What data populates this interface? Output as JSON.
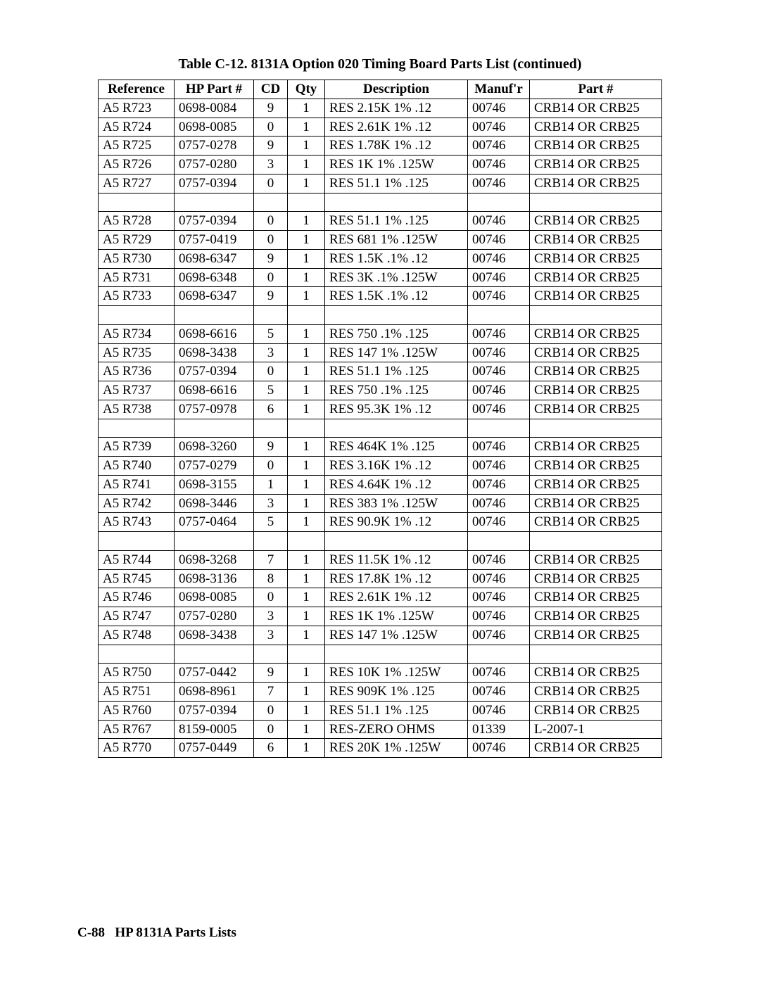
{
  "title": "Table C-12. 8131A Option 020 Timing Board Parts List (continued)",
  "footer_page": "C-88",
  "footer_label": "HP 8131A Parts Lists",
  "columns": [
    "Reference",
    "HP Part #",
    "CD",
    "Qty",
    "Description",
    "Manuf'r",
    "Part #"
  ],
  "col_widths": [
    "95px",
    "100px",
    "35px",
    "40px",
    "190px",
    "75px",
    "175px"
  ],
  "header_fontsize": 19,
  "body_fontsize": 19,
  "border_color": "#000000",
  "background_color": "#ffffff",
  "text_color": "#000000",
  "groups": [
    [
      {
        "ref": "A5 R723",
        "hp": "0698-0084",
        "cd": "9",
        "qty": "1",
        "desc": "RES 2.15K 1% .12",
        "man": "00746",
        "part": "CRB14 OR CRB25"
      },
      {
        "ref": "A5 R724",
        "hp": "0698-0085",
        "cd": "0",
        "qty": "1",
        "desc": "RES 2.61K 1% .12",
        "man": "00746",
        "part": "CRB14 OR CRB25"
      },
      {
        "ref": "A5 R725",
        "hp": "0757-0278",
        "cd": "9",
        "qty": "1",
        "desc": "RES 1.78K 1% .12",
        "man": "00746",
        "part": "CRB14 OR CRB25"
      },
      {
        "ref": "A5 R726",
        "hp": "0757-0280",
        "cd": "3",
        "qty": "1",
        "desc": "RES 1K 1% .125W",
        "man": "00746",
        "part": "CRB14 OR CRB25"
      },
      {
        "ref": "A5 R727",
        "hp": "0757-0394",
        "cd": "0",
        "qty": "1",
        "desc": "RES 51.1 1% .125",
        "man": "00746",
        "part": "CRB14 OR CRB25"
      }
    ],
    [
      {
        "ref": "A5 R728",
        "hp": "0757-0394",
        "cd": "0",
        "qty": "1",
        "desc": "RES 51.1 1% .125",
        "man": "00746",
        "part": "CRB14 OR CRB25"
      },
      {
        "ref": "A5 R729",
        "hp": "0757-0419",
        "cd": "0",
        "qty": "1",
        "desc": "RES 681 1% .125W",
        "man": "00746",
        "part": "CRB14 OR CRB25"
      },
      {
        "ref": "A5 R730",
        "hp": "0698-6347",
        "cd": "9",
        "qty": "1",
        "desc": "RES 1.5K .1% .12",
        "man": "00746",
        "part": "CRB14 OR CRB25"
      },
      {
        "ref": "A5 R731",
        "hp": "0698-6348",
        "cd": "0",
        "qty": "1",
        "desc": "RES 3K .1% .125W",
        "man": "00746",
        "part": "CRB14 OR CRB25"
      },
      {
        "ref": "A5 R733",
        "hp": "0698-6347",
        "cd": "9",
        "qty": "1",
        "desc": "RES 1.5K .1% .12",
        "man": "00746",
        "part": "CRB14 OR CRB25"
      }
    ],
    [
      {
        "ref": "A5 R734",
        "hp": "0698-6616",
        "cd": "5",
        "qty": "1",
        "desc": "RES 750 .1% .125",
        "man": "00746",
        "part": "CRB14 OR CRB25"
      },
      {
        "ref": "A5 R735",
        "hp": "0698-3438",
        "cd": "3",
        "qty": "1",
        "desc": "RES 147 1% .125W",
        "man": "00746",
        "part": "CRB14 OR CRB25"
      },
      {
        "ref": "A5 R736",
        "hp": "0757-0394",
        "cd": "0",
        "qty": "1",
        "desc": "RES 51.1 1% .125",
        "man": "00746",
        "part": "CRB14 OR CRB25"
      },
      {
        "ref": "A5 R737",
        "hp": "0698-6616",
        "cd": "5",
        "qty": "1",
        "desc": "RES 750 .1% .125",
        "man": "00746",
        "part": "CRB14 OR CRB25"
      },
      {
        "ref": "A5 R738",
        "hp": "0757-0978",
        "cd": "6",
        "qty": "1",
        "desc": "RES 95.3K 1% .12",
        "man": "00746",
        "part": "CRB14 OR CRB25"
      }
    ],
    [
      {
        "ref": "A5 R739",
        "hp": "0698-3260",
        "cd": "9",
        "qty": "1",
        "desc": "RES 464K 1% .125",
        "man": "00746",
        "part": "CRB14 OR CRB25"
      },
      {
        "ref": "A5 R740",
        "hp": "0757-0279",
        "cd": "0",
        "qty": "1",
        "desc": "RES 3.16K 1% .12",
        "man": "00746",
        "part": "CRB14 OR CRB25"
      },
      {
        "ref": "A5 R741",
        "hp": "0698-3155",
        "cd": "1",
        "qty": "1",
        "desc": "RES 4.64K 1% .12",
        "man": "00746",
        "part": "CRB14 OR CRB25"
      },
      {
        "ref": "A5 R742",
        "hp": "0698-3446",
        "cd": "3",
        "qty": "1",
        "desc": "RES 383 1% .125W",
        "man": "00746",
        "part": "CRB14 OR CRB25"
      },
      {
        "ref": "A5 R743",
        "hp": "0757-0464",
        "cd": "5",
        "qty": "1",
        "desc": "RES 90.9K 1% .12",
        "man": "00746",
        "part": "CRB14 OR CRB25"
      }
    ],
    [
      {
        "ref": "A5 R744",
        "hp": "0698-3268",
        "cd": "7",
        "qty": "1",
        "desc": "RES 11.5K 1% .12",
        "man": "00746",
        "part": "CRB14 OR CRB25"
      },
      {
        "ref": "A5 R745",
        "hp": "0698-3136",
        "cd": "8",
        "qty": "1",
        "desc": "RES 17.8K 1% .12",
        "man": "00746",
        "part": "CRB14 OR CRB25"
      },
      {
        "ref": "A5 R746",
        "hp": "0698-0085",
        "cd": "0",
        "qty": "1",
        "desc": "RES 2.61K 1% .12",
        "man": "00746",
        "part": "CRB14 OR CRB25"
      },
      {
        "ref": "A5 R747",
        "hp": "0757-0280",
        "cd": "3",
        "qty": "1",
        "desc": "RES 1K 1% .125W",
        "man": "00746",
        "part": "CRB14 OR CRB25"
      },
      {
        "ref": "A5 R748",
        "hp": "0698-3438",
        "cd": "3",
        "qty": "1",
        "desc": "RES 147 1% .125W",
        "man": "00746",
        "part": "CRB14 OR CRB25"
      }
    ],
    [
      {
        "ref": "A5 R750",
        "hp": "0757-0442",
        "cd": "9",
        "qty": "1",
        "desc": "RES 10K 1% .125W",
        "man": "00746",
        "part": "CRB14 OR CRB25"
      },
      {
        "ref": "A5 R751",
        "hp": "0698-8961",
        "cd": "7",
        "qty": "1",
        "desc": "RES 909K 1% .125",
        "man": "00746",
        "part": "CRB14 OR CRB25"
      },
      {
        "ref": "A5 R760",
        "hp": "0757-0394",
        "cd": "0",
        "qty": "1",
        "desc": "RES 51.1 1% .125",
        "man": "00746",
        "part": "CRB14 OR CRB25"
      },
      {
        "ref": "A5 R767",
        "hp": "8159-0005",
        "cd": "0",
        "qty": "1",
        "desc": "RES-ZERO OHMS",
        "man": "01339",
        "part": "L-2007-1"
      },
      {
        "ref": "A5 R770",
        "hp": "0757-0449",
        "cd": "6",
        "qty": "1",
        "desc": "RES 20K 1% .125W",
        "man": "00746",
        "part": "CRB14 OR CRB25"
      }
    ]
  ]
}
